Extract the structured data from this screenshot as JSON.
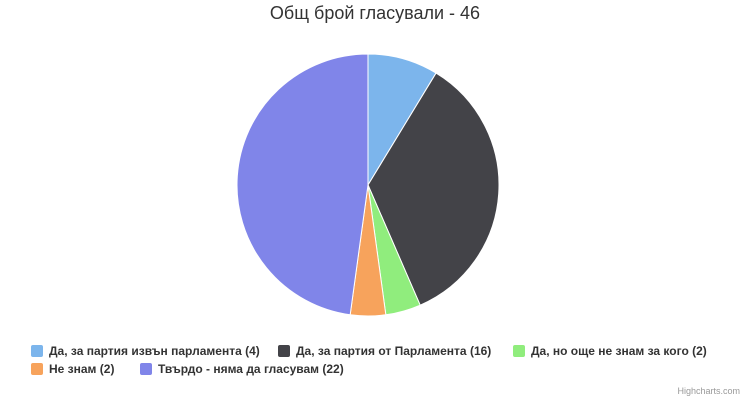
{
  "chart_data": {
    "type": "pie",
    "title": "Общ брой гласували - 46",
    "slices": [
      {
        "label": "Да, за партия извън парламента (4)",
        "value": 4,
        "color": "#7cb5ec"
      },
      {
        "label": "Да, за партия от Парламента (16)",
        "value": 16,
        "color": "#434348"
      },
      {
        "label": "Да, но още не знам за кого (2)",
        "value": 2,
        "color": "#90ed7d"
      },
      {
        "label": "Не знам (2)",
        "value": 2,
        "color": "#f7a35c"
      },
      {
        "label": "Твърдо - няма да гласувам (22)",
        "value": 22,
        "color": "#8085e9"
      }
    ],
    "legend_position": "bottom"
  },
  "credits": "Highcharts.com"
}
